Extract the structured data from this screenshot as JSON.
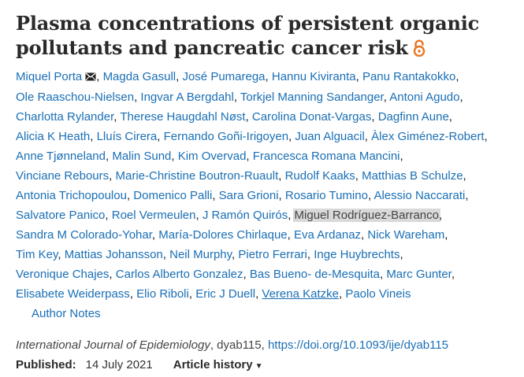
{
  "article": {
    "title": "Plasma concentrations of persistent organic pollutants and pancreatic cancer risk",
    "open_access_icon": "open-access-lock-icon",
    "accent_color": "#e87722",
    "link_color": "#1a6fb5"
  },
  "authors": [
    {
      "name": "Miquel Porta",
      "mail": true
    },
    {
      "name": "Magda Gasull"
    },
    {
      "name": "José Pumarega"
    },
    {
      "name": "Hannu Kiviranta"
    },
    {
      "name": "Panu Rantakokko"
    },
    {
      "name": "Ole Raaschou-Nielsen"
    },
    {
      "name": "Ingvar A Bergdahl"
    },
    {
      "name": "Torkjel Manning Sandanger"
    },
    {
      "name": "Antoni Agudo"
    },
    {
      "name": "Charlotta Rylander"
    },
    {
      "name": "Therese Haugdahl Nøst"
    },
    {
      "name": "Carolina Donat-Vargas"
    },
    {
      "name": "Dagfinn Aune"
    },
    {
      "name": "Alicia K Heath"
    },
    {
      "name": "Lluís Cirera"
    },
    {
      "name": "Fernando Goñi-Irigoyen"
    },
    {
      "name": "Juan Alguacil"
    },
    {
      "name": "Àlex Giménez-Robert"
    },
    {
      "name": "Anne Tjønneland"
    },
    {
      "name": "Malin Sund"
    },
    {
      "name": "Kim Overvad"
    },
    {
      "name": "Francesca Romana Mancini"
    },
    {
      "name": "Vinciane Rebours"
    },
    {
      "name": "Marie-Christine Boutron-Ruault"
    },
    {
      "name": "Rudolf Kaaks"
    },
    {
      "name": "Matthias B Schulze"
    },
    {
      "name": "Antonia Trichopoulou"
    },
    {
      "name": "Domenico Palli"
    },
    {
      "name": "Sara Grioni"
    },
    {
      "name": "Rosario Tumino"
    },
    {
      "name": "Alessio Naccarati"
    },
    {
      "name": "Salvatore Panico"
    },
    {
      "name": "Roel Vermeulen"
    },
    {
      "name": "J Ramón Quirós"
    },
    {
      "name": "Miguel Rodríguez-Barranco",
      "highlighted": true
    },
    {
      "name": "Sandra M Colorado-Yohar"
    },
    {
      "name": "María-Dolores Chirlaque"
    },
    {
      "name": "Eva Ardanaz"
    },
    {
      "name": "Nick Wareham"
    },
    {
      "name": "Tim Key"
    },
    {
      "name": "Mattias Johansson"
    },
    {
      "name": "Neil Murphy"
    },
    {
      "name": "Pietro Ferrari"
    },
    {
      "name": "Inge Huybrechts"
    },
    {
      "name": "Veronique Chajes"
    },
    {
      "name": "Carlos Alberto Gonzalez"
    },
    {
      "name": "Bas Bueno- de-Mesquita"
    },
    {
      "name": "Marc Gunter"
    },
    {
      "name": "Elisabete Weiderpass"
    },
    {
      "name": "Elio Riboli"
    },
    {
      "name": "Eric J Duell"
    },
    {
      "name": "Verena Katzke",
      "underlined": true
    },
    {
      "name": "Paolo Vineis"
    }
  ],
  "author_lines": [
    [
      0,
      1,
      2,
      3,
      4
    ],
    [
      5,
      6,
      7,
      8
    ],
    [
      9,
      10,
      11,
      12
    ],
    [
      13,
      14,
      15,
      16,
      17
    ],
    [
      18,
      19,
      20,
      21
    ],
    [
      22,
      23,
      24,
      25
    ],
    [
      26,
      27,
      28,
      29,
      30
    ],
    [
      31,
      32,
      33,
      34
    ],
    [
      35,
      36,
      37,
      38
    ],
    [
      39,
      40,
      41,
      42,
      43
    ],
    [
      44,
      45,
      46,
      47
    ],
    [
      48,
      49,
      50,
      51,
      52
    ]
  ],
  "author_notes_label": "Author Notes",
  "citation": {
    "journal": "International Journal of Epidemiology",
    "article_id": ", dyab115, ",
    "doi": "https://doi.org/10.1093/ije/dyab115"
  },
  "published": {
    "label": "Published:",
    "date": "14 July 2021",
    "history_label": "Article history",
    "history_icon": "caret-down-icon"
  }
}
